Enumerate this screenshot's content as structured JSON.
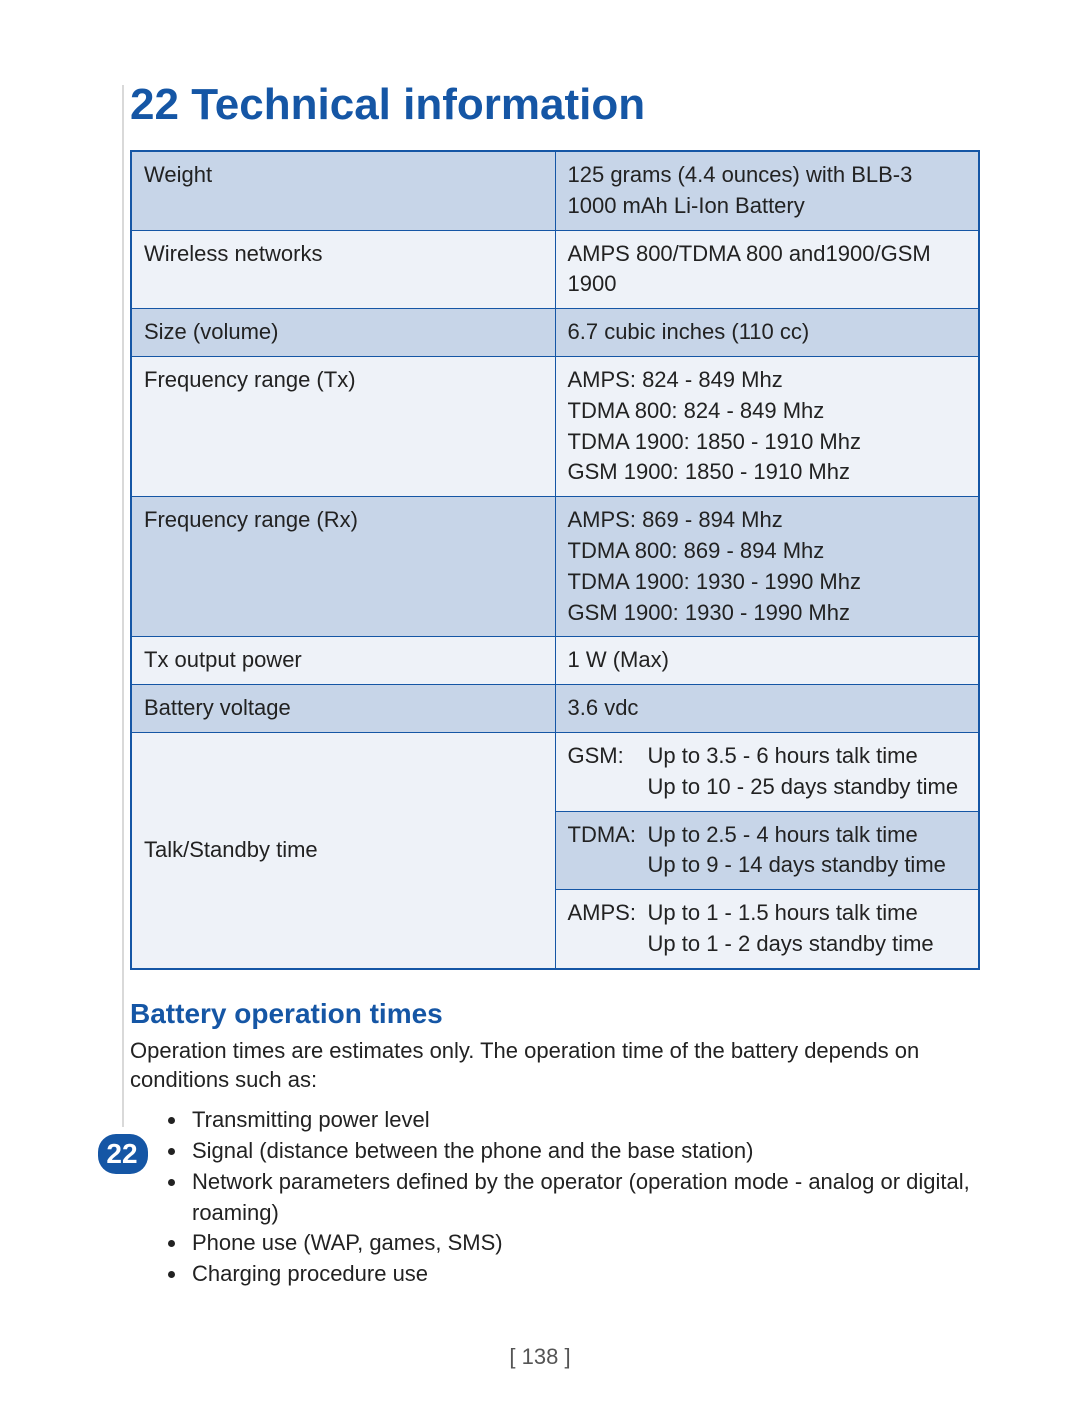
{
  "heading": {
    "number": "22",
    "title": "Technical information"
  },
  "specs": {
    "rows": [
      {
        "label": "Weight",
        "value": "125 grams (4.4 ounces) with BLB-3 1000 mAh Li-Ion Battery",
        "alt": true
      },
      {
        "label": "Wireless networks",
        "value": "AMPS 800/TDMA 800 and1900/GSM 1900",
        "alt": false
      },
      {
        "label": "Size (volume)",
        "value": "6.7 cubic inches (110 cc)",
        "alt": true
      },
      {
        "label": "Frequency range (Tx)",
        "value": "AMPS: 824 - 849 Mhz\nTDMA 800: 824 - 849 Mhz\nTDMA 1900: 1850 - 1910 Mhz\nGSM 1900: 1850 - 1910 Mhz",
        "alt": false
      },
      {
        "label": "Frequency range (Rx)",
        "value": "AMPS: 869 - 894 Mhz\nTDMA 800: 869 - 894 Mhz\nTDMA 1900: 1930 - 1990 Mhz\nGSM 1900: 1930 - 1990 Mhz",
        "alt": true
      },
      {
        "label": "Tx output power",
        "value": "1 W (Max)",
        "alt": false
      },
      {
        "label": "Battery voltage",
        "value": "3.6 vdc",
        "alt": true
      }
    ],
    "talk_standby": {
      "label": "Talk/Standby time",
      "modes": [
        {
          "mode": "GSM:",
          "talk": "Up to 3.5 - 6 hours talk time",
          "standby": "Up to 10 - 25 days standby time",
          "alt": false
        },
        {
          "mode": "TDMA:",
          "talk": "Up to 2.5 - 4 hours talk time",
          "standby": "Up to 9 - 14 days standby time",
          "alt": true
        },
        {
          "mode": "AMPS:",
          "talk": "Up to 1 - 1.5 hours talk time",
          "standby": "Up to 1 - 2 days standby time",
          "alt": false
        }
      ]
    }
  },
  "battery_section": {
    "heading": "Battery operation times",
    "intro": "Operation times are estimates only. The operation time of the battery depends on conditions such as:",
    "bullets": [
      "Transmitting power level",
      "Signal (distance between the phone and the base station)",
      "Network parameters defined by the operator (operation mode - analog or digital, roaming)",
      "Phone use (WAP, games, SMS)",
      "Charging procedure use"
    ]
  },
  "page_number": "[ 138 ]",
  "tab_number": "22",
  "colors": {
    "heading": "#1556a5",
    "border": "#1556a5",
    "row_alt": "#c7d5e8",
    "row_plain": "#eef2f8",
    "text": "#222222",
    "tab_bg": "#1556a5"
  }
}
